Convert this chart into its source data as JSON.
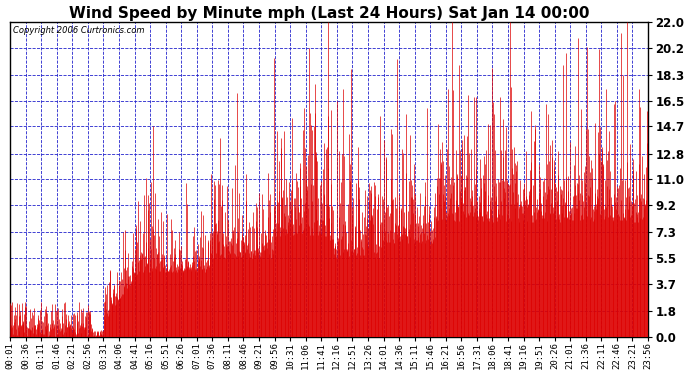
{
  "title": "Wind Speed by Minute mph (Last 24 Hours) Sat Jan 14 00:00",
  "copyright": "Copyright 2006 Curtronics.com",
  "yticks": [
    0.0,
    1.8,
    3.7,
    5.5,
    7.3,
    9.2,
    11.0,
    12.8,
    14.7,
    16.5,
    18.3,
    20.2,
    22.0
  ],
  "ylim": [
    0.0,
    22.0
  ],
  "bar_color": "#dd0000",
  "bg_color": "#ffffff",
  "grid_color": "#2222cc",
  "axis_color": "#000000",
  "title_fontsize": 11,
  "xlabel_fontsize": 6.5,
  "ylabel_fontsize": 8.5,
  "xtick_labels": [
    "00:01",
    "00:36",
    "01:11",
    "01:46",
    "02:21",
    "02:56",
    "03:31",
    "04:06",
    "04:41",
    "05:16",
    "05:51",
    "06:26",
    "07:01",
    "07:36",
    "08:11",
    "08:46",
    "09:21",
    "09:56",
    "10:31",
    "11:06",
    "11:41",
    "12:16",
    "12:51",
    "13:26",
    "14:01",
    "14:36",
    "15:11",
    "15:46",
    "16:21",
    "16:56",
    "17:31",
    "18:06",
    "18:41",
    "19:16",
    "19:51",
    "20:26",
    "21:01",
    "21:36",
    "22:11",
    "22:46",
    "23:21",
    "23:56"
  ],
  "num_minutes": 1440,
  "seed": 42,
  "figsize": [
    6.9,
    3.75
  ],
  "dpi": 100
}
